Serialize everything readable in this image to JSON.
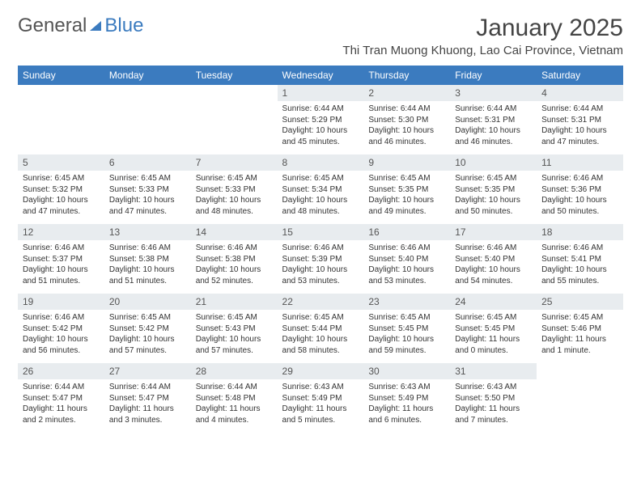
{
  "branding": {
    "logo_text_a": "General",
    "logo_text_b": "Blue",
    "logo_color_gray": "#555555",
    "logo_color_blue": "#3b7bbf"
  },
  "header": {
    "month_title": "January 2025",
    "location": "Thi Tran Muong Khuong, Lao Cai Province, Vietnam"
  },
  "calendar": {
    "header_bg": "#3b7bbf",
    "header_fg": "#ffffff",
    "daynum_bg": "#e8ecef",
    "text_color": "#333333",
    "cell_font_size": 10,
    "header_font_size": 12,
    "daynames": [
      "Sunday",
      "Monday",
      "Tuesday",
      "Wednesday",
      "Thursday",
      "Friday",
      "Saturday"
    ],
    "weeks": [
      [
        null,
        null,
        null,
        {
          "n": "1",
          "sr": "Sunrise: 6:44 AM",
          "ss": "Sunset: 5:29 PM",
          "dl": "Daylight: 10 hours and 45 minutes."
        },
        {
          "n": "2",
          "sr": "Sunrise: 6:44 AM",
          "ss": "Sunset: 5:30 PM",
          "dl": "Daylight: 10 hours and 46 minutes."
        },
        {
          "n": "3",
          "sr": "Sunrise: 6:44 AM",
          "ss": "Sunset: 5:31 PM",
          "dl": "Daylight: 10 hours and 46 minutes."
        },
        {
          "n": "4",
          "sr": "Sunrise: 6:44 AM",
          "ss": "Sunset: 5:31 PM",
          "dl": "Daylight: 10 hours and 47 minutes."
        }
      ],
      [
        {
          "n": "5",
          "sr": "Sunrise: 6:45 AM",
          "ss": "Sunset: 5:32 PM",
          "dl": "Daylight: 10 hours and 47 minutes."
        },
        {
          "n": "6",
          "sr": "Sunrise: 6:45 AM",
          "ss": "Sunset: 5:33 PM",
          "dl": "Daylight: 10 hours and 47 minutes."
        },
        {
          "n": "7",
          "sr": "Sunrise: 6:45 AM",
          "ss": "Sunset: 5:33 PM",
          "dl": "Daylight: 10 hours and 48 minutes."
        },
        {
          "n": "8",
          "sr": "Sunrise: 6:45 AM",
          "ss": "Sunset: 5:34 PM",
          "dl": "Daylight: 10 hours and 48 minutes."
        },
        {
          "n": "9",
          "sr": "Sunrise: 6:45 AM",
          "ss": "Sunset: 5:35 PM",
          "dl": "Daylight: 10 hours and 49 minutes."
        },
        {
          "n": "10",
          "sr": "Sunrise: 6:45 AM",
          "ss": "Sunset: 5:35 PM",
          "dl": "Daylight: 10 hours and 50 minutes."
        },
        {
          "n": "11",
          "sr": "Sunrise: 6:46 AM",
          "ss": "Sunset: 5:36 PM",
          "dl": "Daylight: 10 hours and 50 minutes."
        }
      ],
      [
        {
          "n": "12",
          "sr": "Sunrise: 6:46 AM",
          "ss": "Sunset: 5:37 PM",
          "dl": "Daylight: 10 hours and 51 minutes."
        },
        {
          "n": "13",
          "sr": "Sunrise: 6:46 AM",
          "ss": "Sunset: 5:38 PM",
          "dl": "Daylight: 10 hours and 51 minutes."
        },
        {
          "n": "14",
          "sr": "Sunrise: 6:46 AM",
          "ss": "Sunset: 5:38 PM",
          "dl": "Daylight: 10 hours and 52 minutes."
        },
        {
          "n": "15",
          "sr": "Sunrise: 6:46 AM",
          "ss": "Sunset: 5:39 PM",
          "dl": "Daylight: 10 hours and 53 minutes."
        },
        {
          "n": "16",
          "sr": "Sunrise: 6:46 AM",
          "ss": "Sunset: 5:40 PM",
          "dl": "Daylight: 10 hours and 53 minutes."
        },
        {
          "n": "17",
          "sr": "Sunrise: 6:46 AM",
          "ss": "Sunset: 5:40 PM",
          "dl": "Daylight: 10 hours and 54 minutes."
        },
        {
          "n": "18",
          "sr": "Sunrise: 6:46 AM",
          "ss": "Sunset: 5:41 PM",
          "dl": "Daylight: 10 hours and 55 minutes."
        }
      ],
      [
        {
          "n": "19",
          "sr": "Sunrise: 6:46 AM",
          "ss": "Sunset: 5:42 PM",
          "dl": "Daylight: 10 hours and 56 minutes."
        },
        {
          "n": "20",
          "sr": "Sunrise: 6:45 AM",
          "ss": "Sunset: 5:42 PM",
          "dl": "Daylight: 10 hours and 57 minutes."
        },
        {
          "n": "21",
          "sr": "Sunrise: 6:45 AM",
          "ss": "Sunset: 5:43 PM",
          "dl": "Daylight: 10 hours and 57 minutes."
        },
        {
          "n": "22",
          "sr": "Sunrise: 6:45 AM",
          "ss": "Sunset: 5:44 PM",
          "dl": "Daylight: 10 hours and 58 minutes."
        },
        {
          "n": "23",
          "sr": "Sunrise: 6:45 AM",
          "ss": "Sunset: 5:45 PM",
          "dl": "Daylight: 10 hours and 59 minutes."
        },
        {
          "n": "24",
          "sr": "Sunrise: 6:45 AM",
          "ss": "Sunset: 5:45 PM",
          "dl": "Daylight: 11 hours and 0 minutes."
        },
        {
          "n": "25",
          "sr": "Sunrise: 6:45 AM",
          "ss": "Sunset: 5:46 PM",
          "dl": "Daylight: 11 hours and 1 minute."
        }
      ],
      [
        {
          "n": "26",
          "sr": "Sunrise: 6:44 AM",
          "ss": "Sunset: 5:47 PM",
          "dl": "Daylight: 11 hours and 2 minutes."
        },
        {
          "n": "27",
          "sr": "Sunrise: 6:44 AM",
          "ss": "Sunset: 5:47 PM",
          "dl": "Daylight: 11 hours and 3 minutes."
        },
        {
          "n": "28",
          "sr": "Sunrise: 6:44 AM",
          "ss": "Sunset: 5:48 PM",
          "dl": "Daylight: 11 hours and 4 minutes."
        },
        {
          "n": "29",
          "sr": "Sunrise: 6:43 AM",
          "ss": "Sunset: 5:49 PM",
          "dl": "Daylight: 11 hours and 5 minutes."
        },
        {
          "n": "30",
          "sr": "Sunrise: 6:43 AM",
          "ss": "Sunset: 5:49 PM",
          "dl": "Daylight: 11 hours and 6 minutes."
        },
        {
          "n": "31",
          "sr": "Sunrise: 6:43 AM",
          "ss": "Sunset: 5:50 PM",
          "dl": "Daylight: 11 hours and 7 minutes."
        },
        null
      ]
    ]
  }
}
